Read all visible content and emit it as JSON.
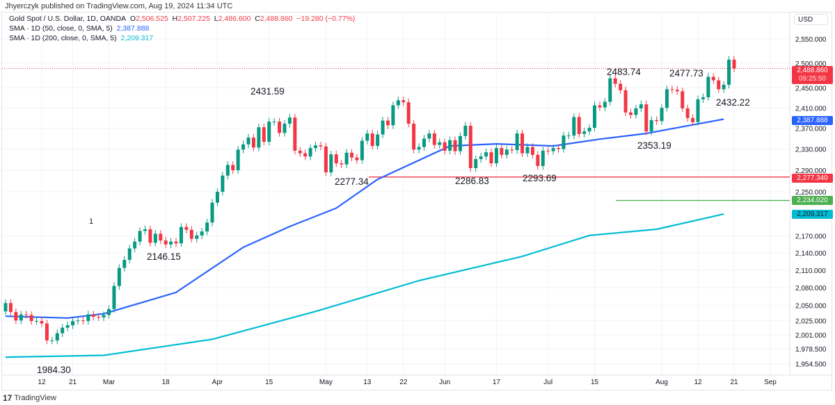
{
  "published": "Jhyerczyk published on TradingView.com, Aug 19, 2024 11:34 UTC",
  "legend": {
    "symbol": "Gold Spot / U.S. Dollar, 1D, OANDA",
    "o_label": "O",
    "o": "2,506.525",
    "h_label": "H",
    "h": "2,507.225",
    "l_label": "L",
    "l": "2,486.600",
    "c_label": "C",
    "c": "2,488.860",
    "change": "−19.280 (−0.77%)",
    "sma50_label": "SMA · 1D (50, close, 0, SMA, 5)",
    "sma50_value": "2,387.888",
    "sma200_label": "SMA · 1D (200, close, 0, SMA, 5)",
    "sma200_value": "2,209.317"
  },
  "currency": "USD",
  "tags": {
    "last_price": "2,488.860",
    "countdown": "09:25:50",
    "sma50": "2,387.888",
    "red_line": "2,277.340",
    "green_line": "2,234.020",
    "sma200": "2,209.317"
  },
  "annotations": {
    "a1": "1984.30",
    "a2": "2146.15",
    "a3": "2431.59",
    "a4": "2277.34",
    "a5": "2286.83",
    "a6": "2293.69",
    "a7": "2483.74",
    "a8": "2477.73",
    "a9": "2432.22",
    "a10": "2353.19",
    "marker": "1"
  },
  "brand": "TradingView",
  "colors": {
    "up": "#089981",
    "down": "#f23645",
    "sma50": "#2962ff",
    "sma200": "#00bcd4",
    "hline_red": "#f23645",
    "hline_green": "#4caf50"
  },
  "chart_data": {
    "type": "candlestick",
    "title": "Gold Spot / U.S. Dollar, 1D, OANDA",
    "scale": "log",
    "ylim": [
      1945,
      2575
    ],
    "y_ticks": [
      2550,
      2500,
      2450,
      2410,
      2370,
      2330,
      2290,
      2250,
      2170,
      2140,
      2110,
      2080,
      2050,
      2025,
      2001,
      1978.5,
      1954.5
    ],
    "y_tick_labels": [
      "2,550.000",
      "2,500.000",
      "2,450.000",
      "2,410.000",
      "2,370.000",
      "2,330.000",
      "2,290.000",
      "2,250.000",
      "2,170.000",
      "2,140.000",
      "2,110.000",
      "2,080.000",
      "2,050.000",
      "2,025.000",
      "2,001.000",
      "1,978.500",
      "1,954.500"
    ],
    "x_tick_labels": [
      "12",
      "21",
      "Mar",
      "18",
      "Apr",
      "15",
      "May",
      "13",
      "22",
      "Jun",
      "17",
      "Jul",
      "15",
      "Aug",
      "12",
      "21",
      "Sep"
    ],
    "x_tick_index": [
      7,
      13,
      20,
      31,
      41,
      51,
      62,
      70,
      77,
      85,
      95,
      105,
      114,
      127,
      134,
      141,
      148
    ],
    "first_open": 2040,
    "closes": [
      2054,
      2039,
      2025,
      2035,
      2034,
      2024,
      2024,
      2020,
      1992,
      1992,
      2004,
      2013,
      2017,
      2024,
      2025,
      2024,
      2035,
      2031,
      2030,
      2034,
      2044,
      2083,
      2114,
      2128,
      2148,
      2160,
      2179,
      2182,
      2158,
      2174,
      2162,
      2155,
      2160,
      2157,
      2186,
      2181,
      2165,
      2171,
      2178,
      2194,
      2230,
      2250,
      2280,
      2300,
      2290,
      2329,
      2339,
      2352,
      2333,
      2372,
      2344,
      2383,
      2383,
      2361,
      2379,
      2391,
      2327,
      2322,
      2316,
      2332,
      2337,
      2335,
      2286,
      2320,
      2303,
      2301,
      2323,
      2314,
      2309,
      2346,
      2360,
      2336,
      2358,
      2385,
      2376,
      2415,
      2425,
      2421,
      2379,
      2329,
      2334,
      2350,
      2360,
      2338,
      2343,
      2327,
      2347,
      2326,
      2355,
      2375,
      2294,
      2311,
      2316,
      2324,
      2303,
      2332,
      2319,
      2329,
      2328,
      2360,
      2322,
      2334,
      2319,
      2298,
      2327,
      2326,
      2332,
      2330,
      2356,
      2356,
      2392,
      2359,
      2364,
      2371,
      2415,
      2411,
      2422,
      2469,
      2458,
      2445,
      2401,
      2396,
      2409,
      2417,
      2364,
      2386,
      2384,
      2410,
      2447,
      2446,
      2443,
      2409,
      2390,
      2382,
      2427,
      2431,
      2472,
      2465,
      2447,
      2456,
      2507,
      2489
    ],
    "series": [
      {
        "name": "SMA 50",
        "points": [
          [
            0,
            2032
          ],
          [
            12,
            2029
          ],
          [
            19,
            2036
          ],
          [
            33,
            2072
          ],
          [
            46,
            2150
          ],
          [
            55,
            2187
          ],
          [
            64,
            2220
          ],
          [
            72,
            2273
          ],
          [
            86,
            2336
          ],
          [
            95,
            2340
          ],
          [
            106,
            2336
          ],
          [
            115,
            2349
          ],
          [
            124,
            2360
          ],
          [
            139,
            2387.888
          ]
        ]
      },
      {
        "name": "SMA 200",
        "points": [
          [
            0,
            1965
          ],
          [
            19,
            1968
          ],
          [
            40,
            1994
          ],
          [
            60,
            2040
          ],
          [
            80,
            2092
          ],
          [
            100,
            2134
          ],
          [
            113,
            2171
          ],
          [
            126,
            2182
          ],
          [
            139,
            2209.317
          ]
        ]
      }
    ],
    "hlines": [
      {
        "value": 2277.34,
        "color": "red"
      },
      {
        "value": 2234.02,
        "color": "green"
      }
    ],
    "last_price": 2488.86
  }
}
